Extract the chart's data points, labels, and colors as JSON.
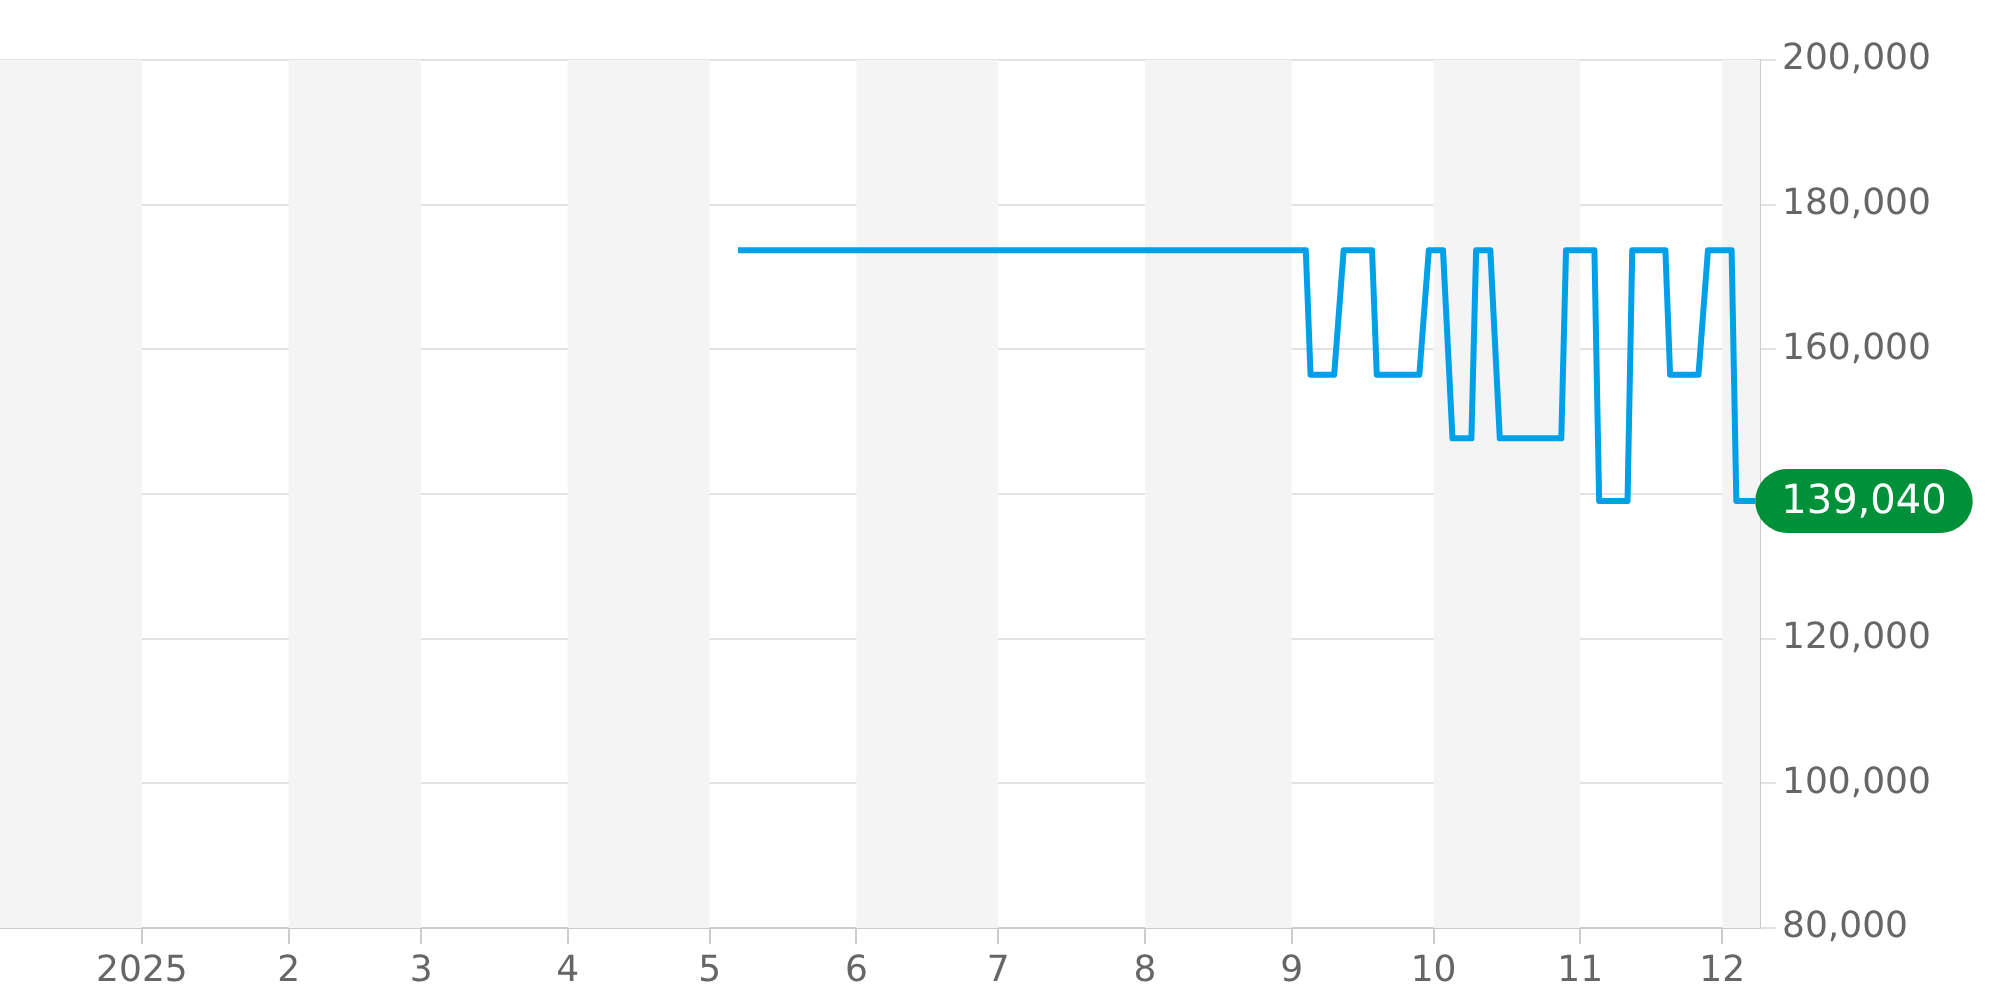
{
  "chart_data": {
    "type": "line",
    "x": [
      "2025-05-07",
      "2025-09-04",
      "2025-09-05",
      "2025-09-10",
      "2025-09-12",
      "2025-09-18",
      "2025-09-19",
      "2025-09-28",
      "2025-09-30",
      "2025-10-03",
      "2025-10-05",
      "2025-10-09",
      "2025-10-10",
      "2025-10-13",
      "2025-10-15",
      "2025-10-28",
      "2025-10-29",
      "2025-11-04",
      "2025-11-05",
      "2025-11-11",
      "2025-11-12",
      "2025-11-19",
      "2025-11-20",
      "2025-11-26",
      "2025-11-28",
      "2025-12-03",
      "2025-12-04",
      "2025-12-08"
    ],
    "series": [
      {
        "color": "#00a0e9",
        "values": [
          173700,
          173700,
          156500,
          156500,
          173700,
          173700,
          156500,
          156500,
          173700,
          173700,
          147700,
          147700,
          173700,
          173700,
          147700,
          147700,
          173700,
          173700,
          139040,
          139040,
          173700,
          173700,
          156500,
          156500,
          173700,
          173700,
          139040,
          139040
        ],
        "value_labels": [
          null,
          null,
          null,
          null,
          null,
          null,
          null,
          null,
          null,
          null,
          null,
          null,
          null,
          null,
          null,
          null,
          null,
          null,
          null,
          null,
          null,
          null,
          null,
          null,
          null,
          null,
          null,
          "139,040"
        ]
      }
    ],
    "xlim": [
      "2024-12-02",
      "2025-12-09"
    ],
    "xticks": [
      {
        "value": "2025-01-01",
        "label": "2025"
      },
      {
        "value": "2025-02-01",
        "label": "2"
      },
      {
        "value": "2025-03-01",
        "label": "3"
      },
      {
        "value": "2025-04-01",
        "label": "4"
      },
      {
        "value": "2025-05-01",
        "label": "5"
      },
      {
        "value": "2025-06-01",
        "label": "6"
      },
      {
        "value": "2025-07-01",
        "label": "7"
      },
      {
        "value": "2025-08-01",
        "label": "8"
      },
      {
        "value": "2025-09-01",
        "label": "9"
      },
      {
        "value": "2025-10-01",
        "label": "10"
      },
      {
        "value": "2025-11-01",
        "label": "11"
      },
      {
        "value": "2025-12-01",
        "label": "12"
      }
    ],
    "ylim": [
      80000,
      200000
    ],
    "yticks": [
      {
        "value": 80000,
        "label": "80,000"
      },
      {
        "value": 100000,
        "label": "100,000"
      },
      {
        "value": 120000,
        "label": "120,000"
      },
      {
        "value": 140000,
        "label": null
      },
      {
        "value": 160000,
        "label": "160,000"
      },
      {
        "value": 180000,
        "label": "180,000"
      },
      {
        "value": 200000,
        "label": "200,000"
      }
    ],
    "bands": [
      {
        "axis": "x",
        "from": "2024-12-02",
        "to": "2025-01-01",
        "color": "#f4f4f4"
      },
      {
        "axis": "x",
        "from": "2025-02-01",
        "to": "2025-03-01",
        "color": "#f4f4f4"
      },
      {
        "axis": "x",
        "from": "2025-04-01",
        "to": "2025-05-01",
        "color": "#f4f4f4"
      },
      {
        "axis": "x",
        "from": "2025-06-01",
        "to": "2025-07-01",
        "color": "#f4f4f4"
      },
      {
        "axis": "x",
        "from": "2025-08-01",
        "to": "2025-09-01",
        "color": "#f4f4f4"
      },
      {
        "axis": "x",
        "from": "2025-10-01",
        "to": "2025-11-01",
        "color": "#f4f4f4"
      },
      {
        "axis": "x",
        "from": "2025-12-01",
        "to": "2025-12-09",
        "color": "#f4f4f4"
      }
    ],
    "grid": "y",
    "legend": false
  }
}
